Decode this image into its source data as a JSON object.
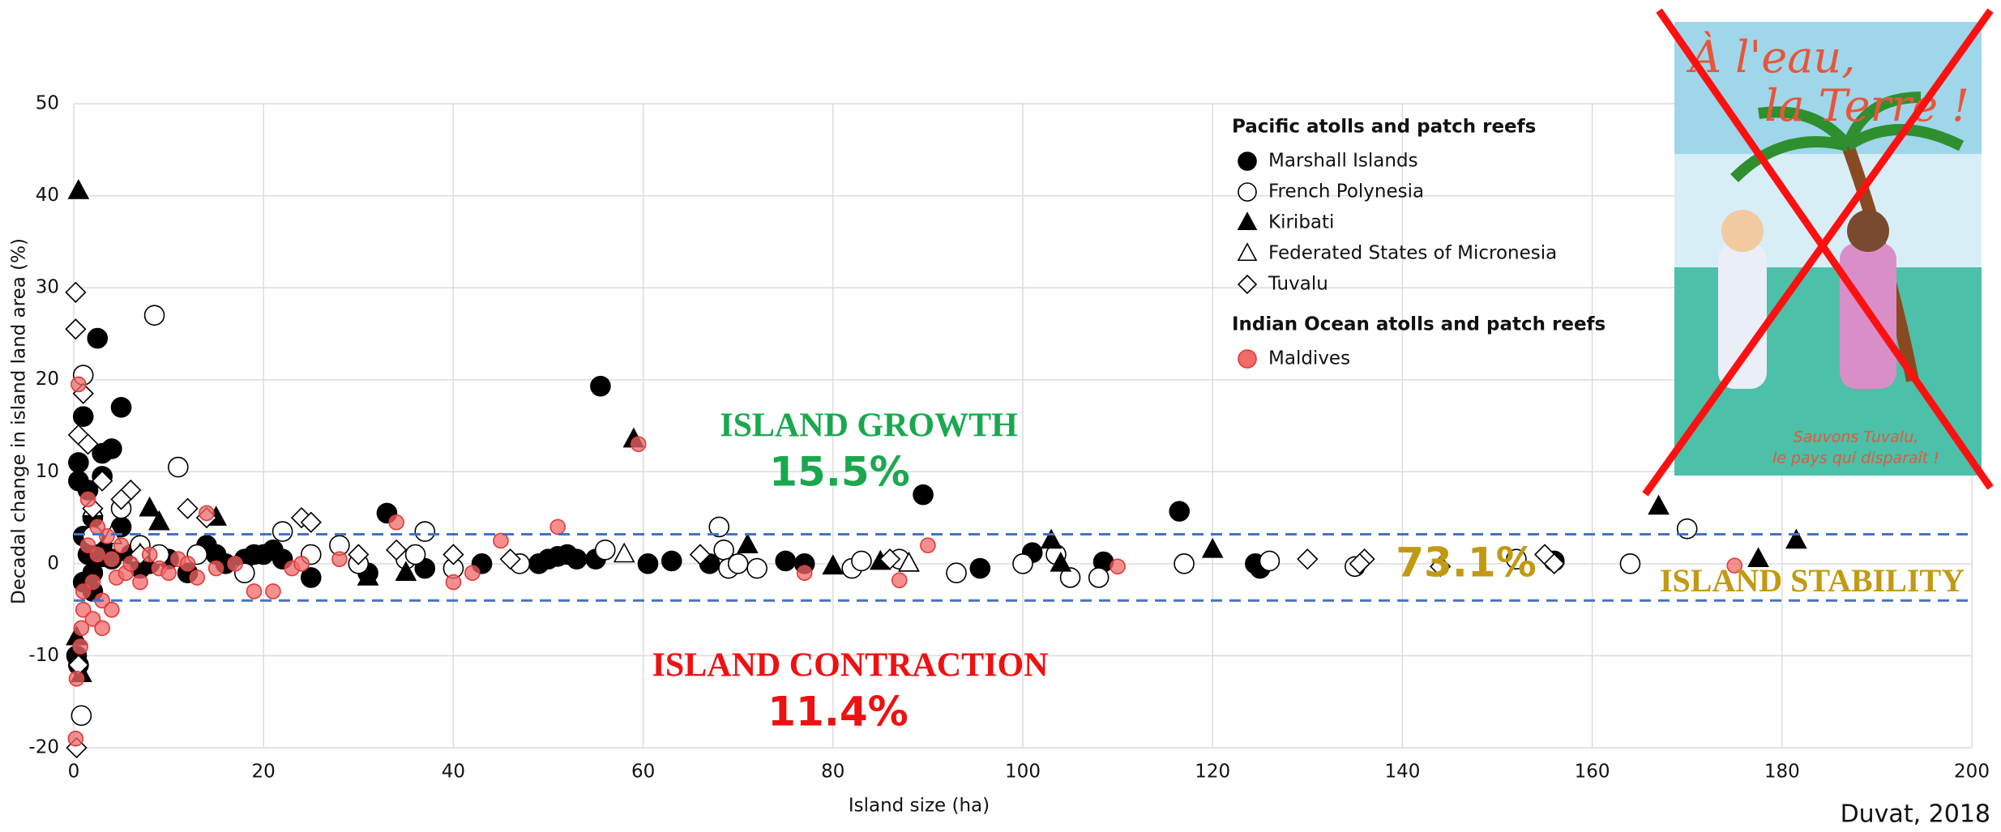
{
  "chart_data": {
    "type": "scatter",
    "xlabel": "Island size (ha)",
    "ylabel": "Decadal change in island land area (%)",
    "xlim": [
      0,
      200
    ],
    "xticks": [
      0,
      20,
      40,
      60,
      80,
      100,
      120,
      140,
      160,
      180,
      200
    ],
    "ylim": [
      -20,
      50
    ],
    "yticks": [
      -20,
      -10,
      0,
      10,
      20,
      30,
      40,
      50
    ],
    "grid": true,
    "reference_lines": [
      3.2,
      -4
    ],
    "series": [
      {
        "name": "Marshall Islands",
        "group": "Pacific atolls and patch reefs",
        "marker": "circle",
        "color": "#000000",
        "fill": "#000000",
        "x": [
          0.5,
          1,
          2.5,
          3,
          4,
          5,
          0.5,
          1.5,
          3,
          2,
          5,
          0.5,
          1,
          1.5,
          2,
          3,
          4,
          6,
          7,
          8,
          10,
          12,
          14,
          15,
          16,
          18,
          19,
          20,
          21,
          22,
          25,
          31,
          33,
          37,
          43,
          49,
          50,
          51,
          52,
          53,
          55,
          55.5,
          60.5,
          63,
          67,
          75,
          77,
          89.5,
          95.5,
          101,
          108.5,
          116.5,
          124.5,
          125,
          156,
          0.3,
          1,
          2
        ],
        "values": [
          11,
          16,
          24.5,
          12,
          12.5,
          17,
          9,
          8,
          9.5,
          5,
          4,
          -11,
          3,
          1,
          -1,
          2,
          0.5,
          1,
          -0.5,
          0,
          0.5,
          -1,
          2,
          1,
          0,
          0.5,
          1,
          1,
          1.5,
          0.5,
          -1.5,
          -1,
          5.5,
          -0.5,
          0,
          0,
          0.5,
          0.8,
          1,
          0.5,
          0.5,
          19.3,
          0,
          0.3,
          0,
          0.3,
          0,
          7.5,
          -0.5,
          1.2,
          0.2,
          5.7,
          0,
          -0.5,
          0.3,
          -10,
          -2,
          -3
        ]
      },
      {
        "name": "French Polynesia",
        "group": "Pacific atolls and patch reefs",
        "marker": "circle",
        "color": "#000000",
        "fill": "#ffffff",
        "x": [
          1,
          0.8,
          8.5,
          11,
          2,
          5,
          7,
          9,
          13,
          18,
          22,
          25,
          28,
          30,
          35,
          36,
          37,
          40,
          47,
          56,
          68,
          68.5,
          69,
          70,
          72,
          82,
          83,
          87,
          93,
          103.5,
          105,
          108,
          117,
          126,
          135,
          164,
          170,
          152,
          100
        ],
        "values": [
          20.5,
          -16.5,
          27,
          10.5,
          3,
          6,
          2,
          1,
          1,
          -1,
          3.5,
          1,
          2,
          0,
          0.5,
          1,
          3.5,
          -0.5,
          0,
          1.5,
          4,
          1.5,
          -0.5,
          0,
          -0.5,
          -0.5,
          0.3,
          0.5,
          -1,
          1,
          -1.5,
          -1.5,
          0,
          0.3,
          -0.3,
          0,
          3.8,
          0.5,
          0
        ]
      },
      {
        "name": "Kiribati",
        "group": "Pacific atolls and patch reefs",
        "marker": "triangle",
        "color": "#000000",
        "fill": "#000000",
        "x": [
          0.5,
          0.3,
          0.8,
          8,
          9,
          15,
          31,
          35,
          59,
          71,
          80,
          85,
          88,
          103,
          104,
          120,
          167,
          177.5,
          181.5,
          3
        ],
        "values": [
          40.5,
          -8,
          -12,
          6,
          4.5,
          5,
          -1.5,
          -1,
          13.5,
          2,
          -0.3,
          0.2,
          0,
          2.5,
          0,
          1.5,
          6.2,
          0.5,
          2.5,
          0.5
        ]
      },
      {
        "name": "Federated States of Micronesia",
        "group": "Pacific atolls and patch reefs",
        "marker": "triangle",
        "color": "#000000",
        "fill": "#ffffff",
        "x": [
          58,
          88,
          4,
          7,
          2
        ],
        "values": [
          1,
          0,
          3,
          1,
          6
        ]
      },
      {
        "name": "Tuvalu",
        "group": "Pacific atolls and patch reefs",
        "marker": "diamond",
        "color": "#000000",
        "fill": "#ffffff",
        "x": [
          0.2,
          0.2,
          0.5,
          1,
          0.3,
          0.5,
          2,
          6,
          5,
          7,
          12,
          14,
          24,
          25,
          30,
          34,
          40,
          46,
          66,
          86,
          130,
          136,
          135.5,
          155,
          156,
          144,
          1.5,
          3
        ],
        "values": [
          29.5,
          25.5,
          14,
          18.5,
          -20,
          -11,
          6,
          8,
          7,
          1,
          6,
          5,
          5,
          4.5,
          1,
          1.5,
          1,
          0.5,
          1,
          0.5,
          0.5,
          0.5,
          0,
          1,
          0,
          -0.3,
          13,
          9
        ]
      },
      {
        "name": "Maldives",
        "group": "Indian Ocean atolls and patch reefs",
        "marker": "circle",
        "color": "#e03a3a",
        "fill": "#f26a6a",
        "x": [
          0.3,
          0.2,
          0.5,
          0.8,
          1,
          1.5,
          2,
          2.5,
          3,
          3.5,
          4,
          4.5,
          5,
          5.5,
          6,
          7,
          8,
          9,
          10,
          11,
          12,
          13,
          14,
          15,
          17,
          19,
          21,
          23,
          24,
          28,
          34,
          40,
          42,
          45,
          51,
          59.5,
          77,
          87,
          90,
          110,
          175,
          1,
          2,
          3,
          4,
          1.5,
          2.5,
          0.7
        ],
        "values": [
          -12.5,
          -19,
          19.5,
          -7,
          -3,
          2,
          -2,
          1,
          -4,
          3,
          0.5,
          -1.5,
          2,
          -1,
          0,
          -2,
          1,
          -0.5,
          -1,
          0.5,
          0,
          -1.5,
          5.5,
          -0.5,
          0,
          -3,
          -3,
          -0.5,
          0,
          0.5,
          4.5,
          -2,
          -1,
          2.5,
          4,
          13,
          -1,
          -1.8,
          2,
          -0.3,
          -0.2,
          -5,
          -6,
          -7,
          -5,
          7,
          4,
          -9
        ]
      }
    ],
    "annotations": [
      "ISLAND GROWTH",
      "15.5%",
      "ISLAND CONTRACTION",
      "11.4%",
      "73.1%",
      "ISLAND STABILITY"
    ],
    "source": "Duvat, 2018",
    "inset": {
      "title_lines": [
        "À l'eau,",
        "la Terre !"
      ],
      "caption_lines": [
        "Sauvons Tuvalu,",
        "le pays qui disparaît !"
      ]
    }
  }
}
